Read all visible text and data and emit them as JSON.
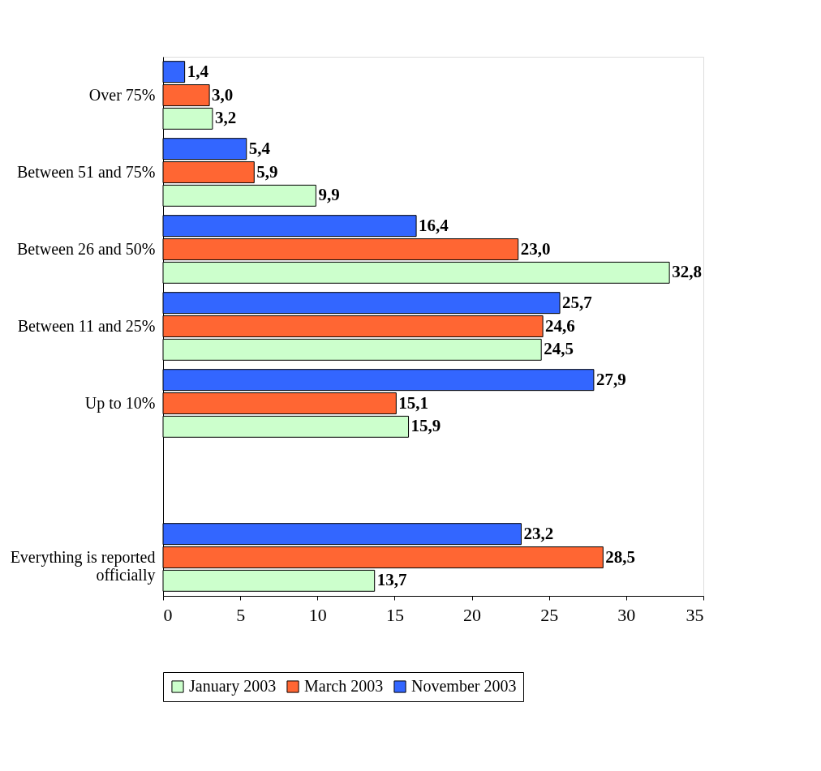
{
  "chart_data": {
    "type": "bar",
    "orientation": "horizontal",
    "categories": [
      "Over 75%",
      "Between 51 and 75%",
      "Between 26 and 50%",
      "Between 11 and 25%",
      "Up to 10%",
      null,
      "Everything is reported officially"
    ],
    "series": [
      {
        "name": "January 2003",
        "color": "#ccffcc",
        "values": [
          3.2,
          9.9,
          32.8,
          24.5,
          15.9,
          null,
          13.7
        ],
        "value_labels": [
          "3,2",
          "9,9",
          "32,8",
          "24,5",
          "15,9",
          null,
          "13,7"
        ]
      },
      {
        "name": "March 2003",
        "color": "#ff6633",
        "values": [
          3.0,
          5.9,
          23.0,
          24.6,
          15.1,
          null,
          28.5
        ],
        "value_labels": [
          "3,0",
          "5,9",
          "23,0",
          "24,6",
          "15,1",
          null,
          "28,5"
        ]
      },
      {
        "name": "November 2003",
        "color": "#3366ff",
        "values": [
          1.4,
          5.4,
          16.4,
          25.7,
          27.9,
          null,
          23.2
        ],
        "value_labels": [
          "1,4",
          "5,4",
          "16,4",
          "25,7",
          "27,9",
          null,
          "23,2"
        ]
      }
    ],
    "xlim": [
      0,
      35
    ],
    "xticks": [
      0,
      5,
      10,
      15,
      20,
      25,
      30,
      35
    ],
    "grid": false,
    "legend": "bottom"
  }
}
